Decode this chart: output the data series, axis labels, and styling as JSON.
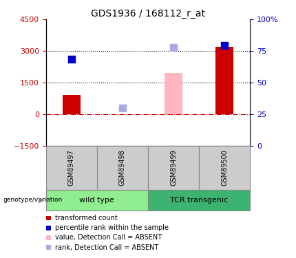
{
  "title": "GDS1936 / 168112_r_at",
  "samples": [
    "GSM89497",
    "GSM89498",
    "GSM89499",
    "GSM89500"
  ],
  "groups": [
    {
      "name": "wild type",
      "color": "#90EE90",
      "size": 2
    },
    {
      "name": "TCR transgenic",
      "color": "#3CB371",
      "size": 2
    }
  ],
  "bar_present": [
    {
      "x": 0,
      "val": 900,
      "color": "#CC0000"
    },
    {
      "x": 3,
      "val": 3200,
      "color": "#CC0000"
    }
  ],
  "bar_absent": [
    {
      "x": 2,
      "val": 1950,
      "color": "#FFB6C1"
    }
  ],
  "point_present": [
    {
      "x": 0,
      "val": 2600,
      "color": "#0000CC"
    },
    {
      "x": 3,
      "val": 3270,
      "color": "#0000CC"
    }
  ],
  "point_absent": [
    {
      "x": 1,
      "val": 300,
      "color": "#AAAADD"
    },
    {
      "x": 2,
      "val": 3170,
      "color": "#AAAADD"
    }
  ],
  "ylim": [
    -1500,
    4500
  ],
  "yticks_left": [
    -1500,
    0,
    1500,
    3000,
    4500
  ],
  "yticks_right": [
    0,
    25,
    50,
    75,
    100
  ],
  "hline_y": 0,
  "dotted_lines": [
    1500,
    3000
  ],
  "bar_width": 0.35,
  "point_size": 55,
  "legend_items": [
    {
      "color": "#CC0000",
      "label": "transformed count"
    },
    {
      "color": "#0000CC",
      "label": "percentile rank within the sample"
    },
    {
      "color": "#FFB6C1",
      "label": "value, Detection Call = ABSENT"
    },
    {
      "color": "#AAAADD",
      "label": "rank, Detection Call = ABSENT"
    }
  ],
  "left_color": "#CC0000",
  "right_color": "#0000CC",
  "title_fontsize": 10,
  "tick_fontsize": 8,
  "legend_fontsize": 7,
  "sample_fontsize": 7,
  "group_fontsize": 8
}
